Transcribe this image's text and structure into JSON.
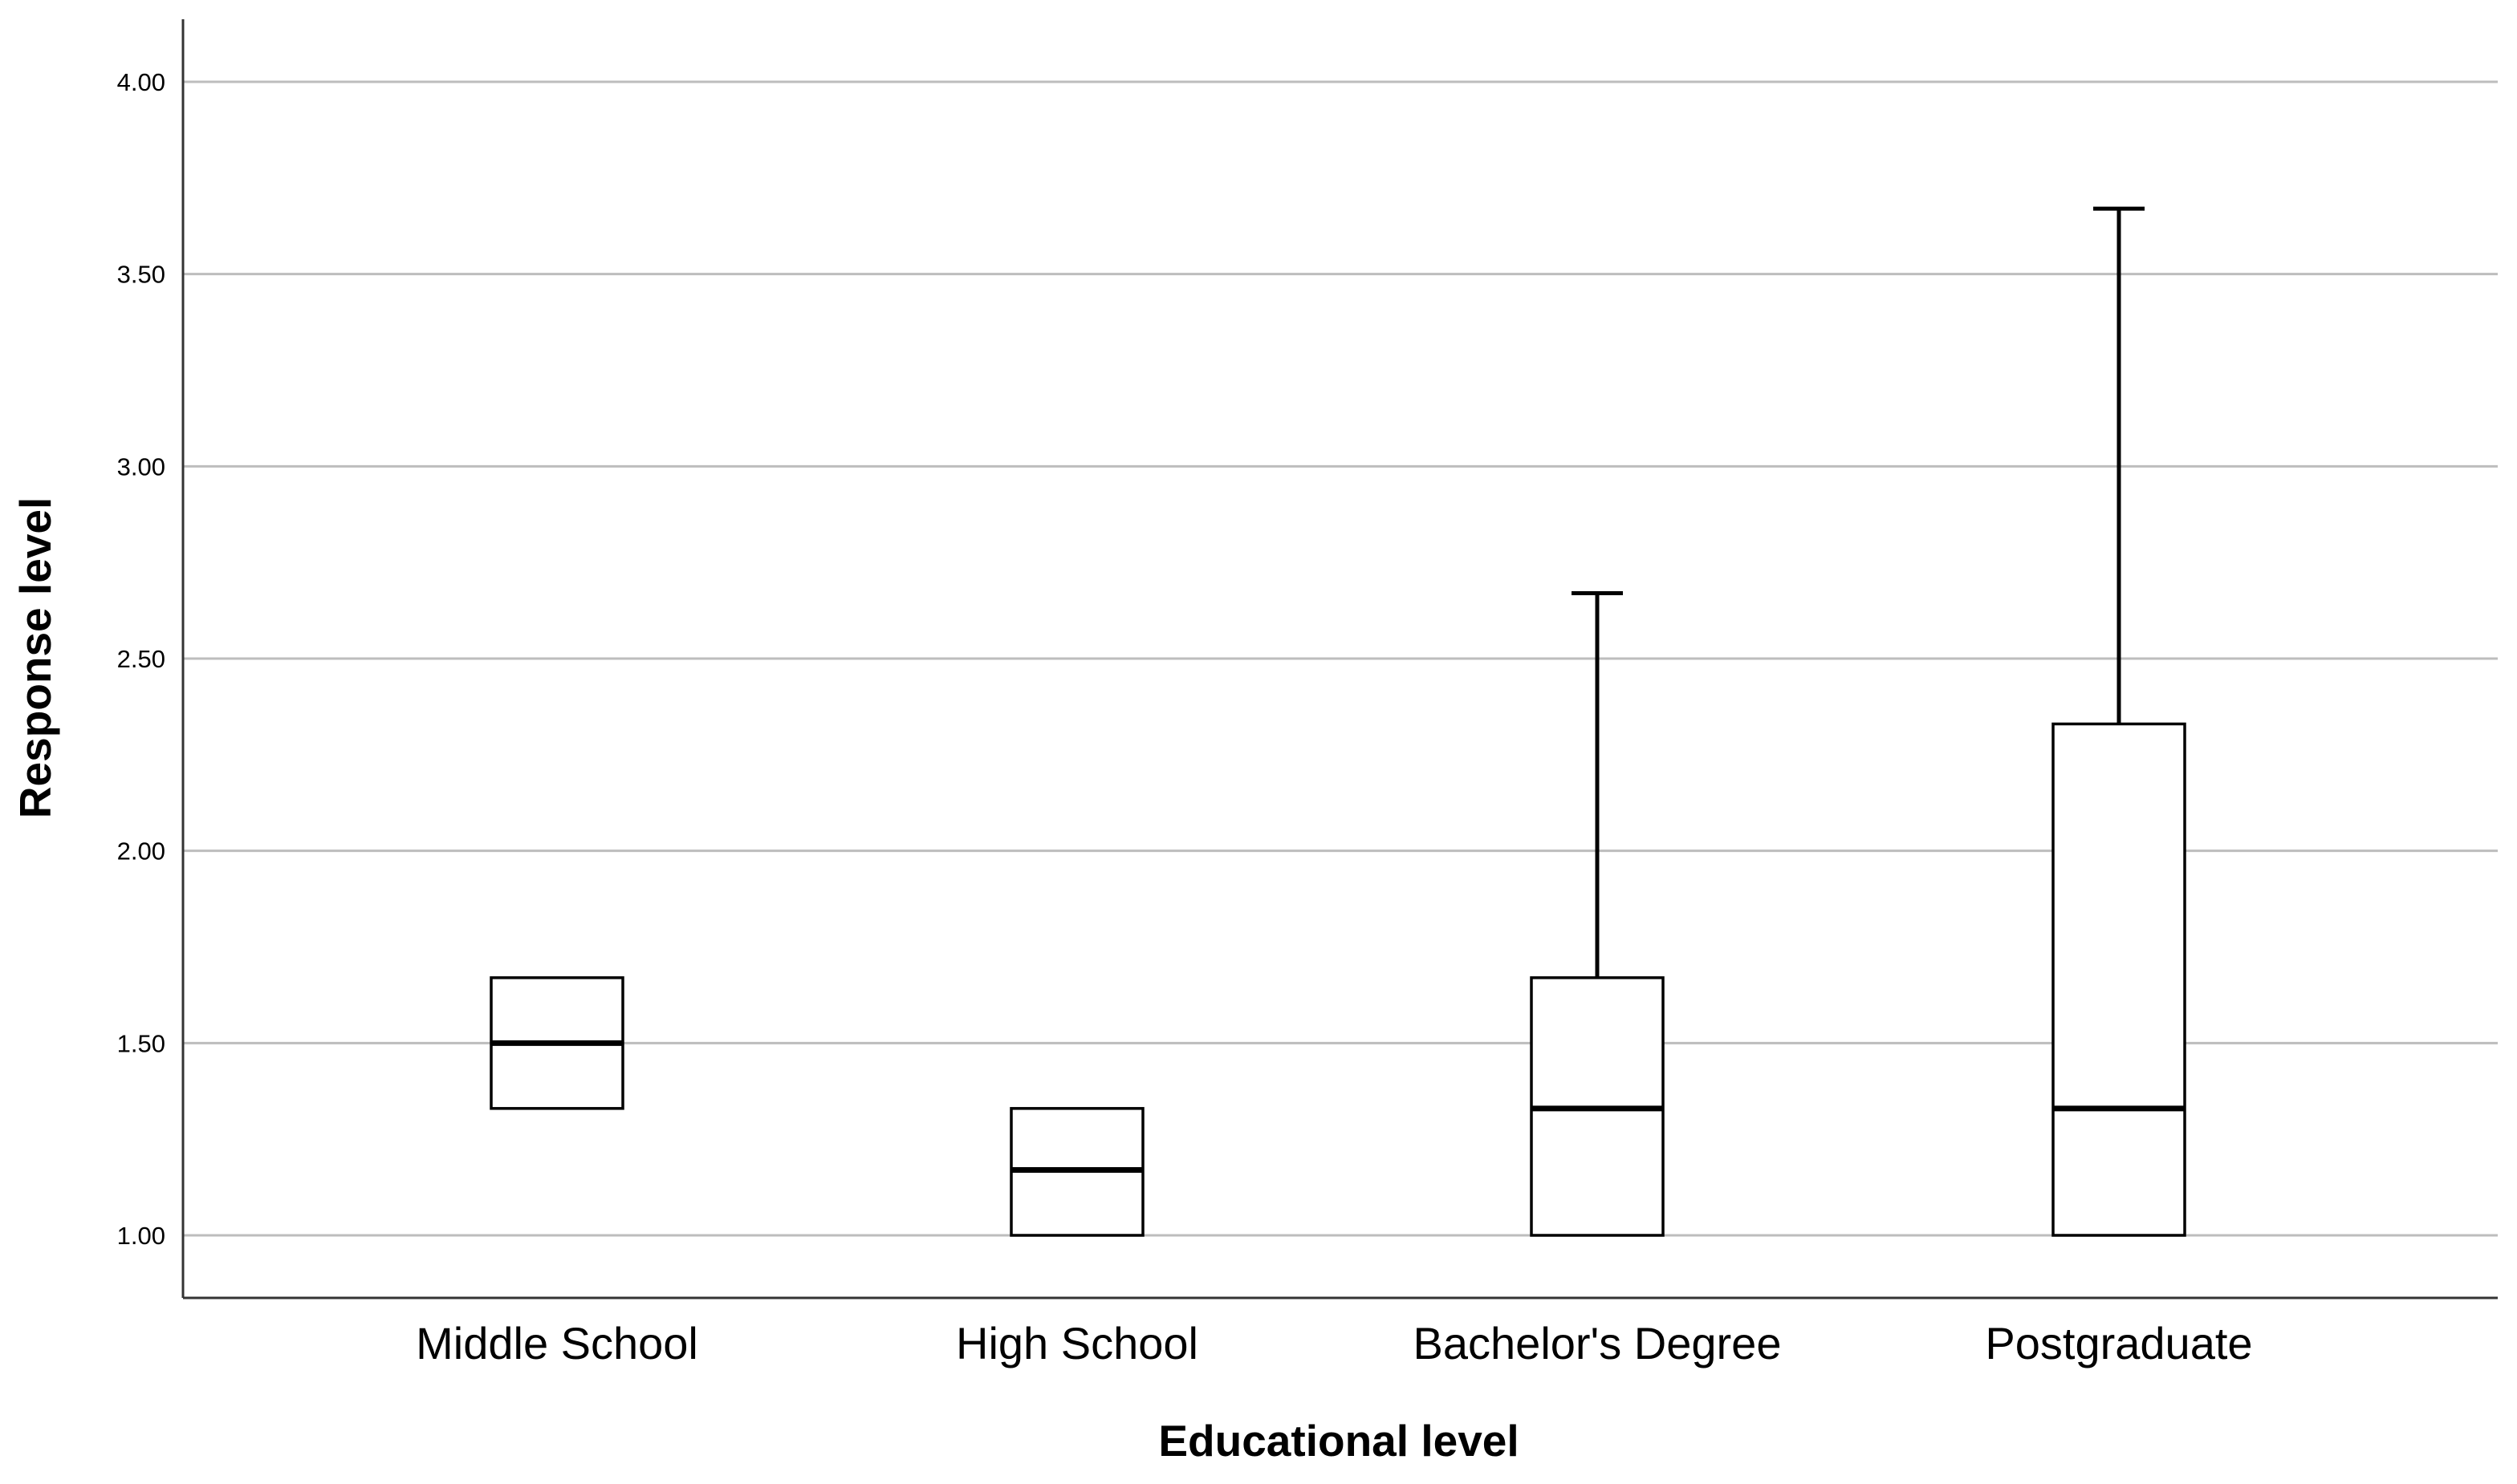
{
  "chart_data": {
    "type": "boxplot",
    "title": "",
    "xlabel": "Educational level",
    "ylabel": "Response level",
    "ylim": [
      0.83,
      4.16
    ],
    "yticks": [
      1.0,
      1.5,
      2.0,
      2.5,
      3.0,
      3.5,
      4.0
    ],
    "ytick_labels": [
      "1.00",
      "1.50",
      "2.00",
      "2.50",
      "3.00",
      "3.50",
      "4.00"
    ],
    "grid": "horizontal",
    "categories": [
      "Middle School",
      "High School",
      "Bachelor's Degree",
      "Postgraduate"
    ],
    "boxes": [
      {
        "category": "Middle School",
        "whisker_low": 1.33,
        "q1": 1.33,
        "median": 1.5,
        "q3": 1.67,
        "whisker_high": 1.67
      },
      {
        "category": "High School",
        "whisker_low": 1.0,
        "q1": 1.0,
        "median": 1.17,
        "q3": 1.33,
        "whisker_high": 1.33
      },
      {
        "category": "Bachelor's Degree",
        "whisker_low": 1.0,
        "q1": 1.0,
        "median": 1.33,
        "q3": 1.67,
        "whisker_high": 2.67
      },
      {
        "category": "Postgraduate",
        "whisker_low": 1.0,
        "q1": 1.0,
        "median": 1.33,
        "q3": 2.33,
        "whisker_high": 3.67
      }
    ],
    "colors": {
      "box_fill": "#ffffff",
      "box_stroke": "#000000",
      "grid": "#bdbdbd",
      "axis": "#333333"
    }
  }
}
